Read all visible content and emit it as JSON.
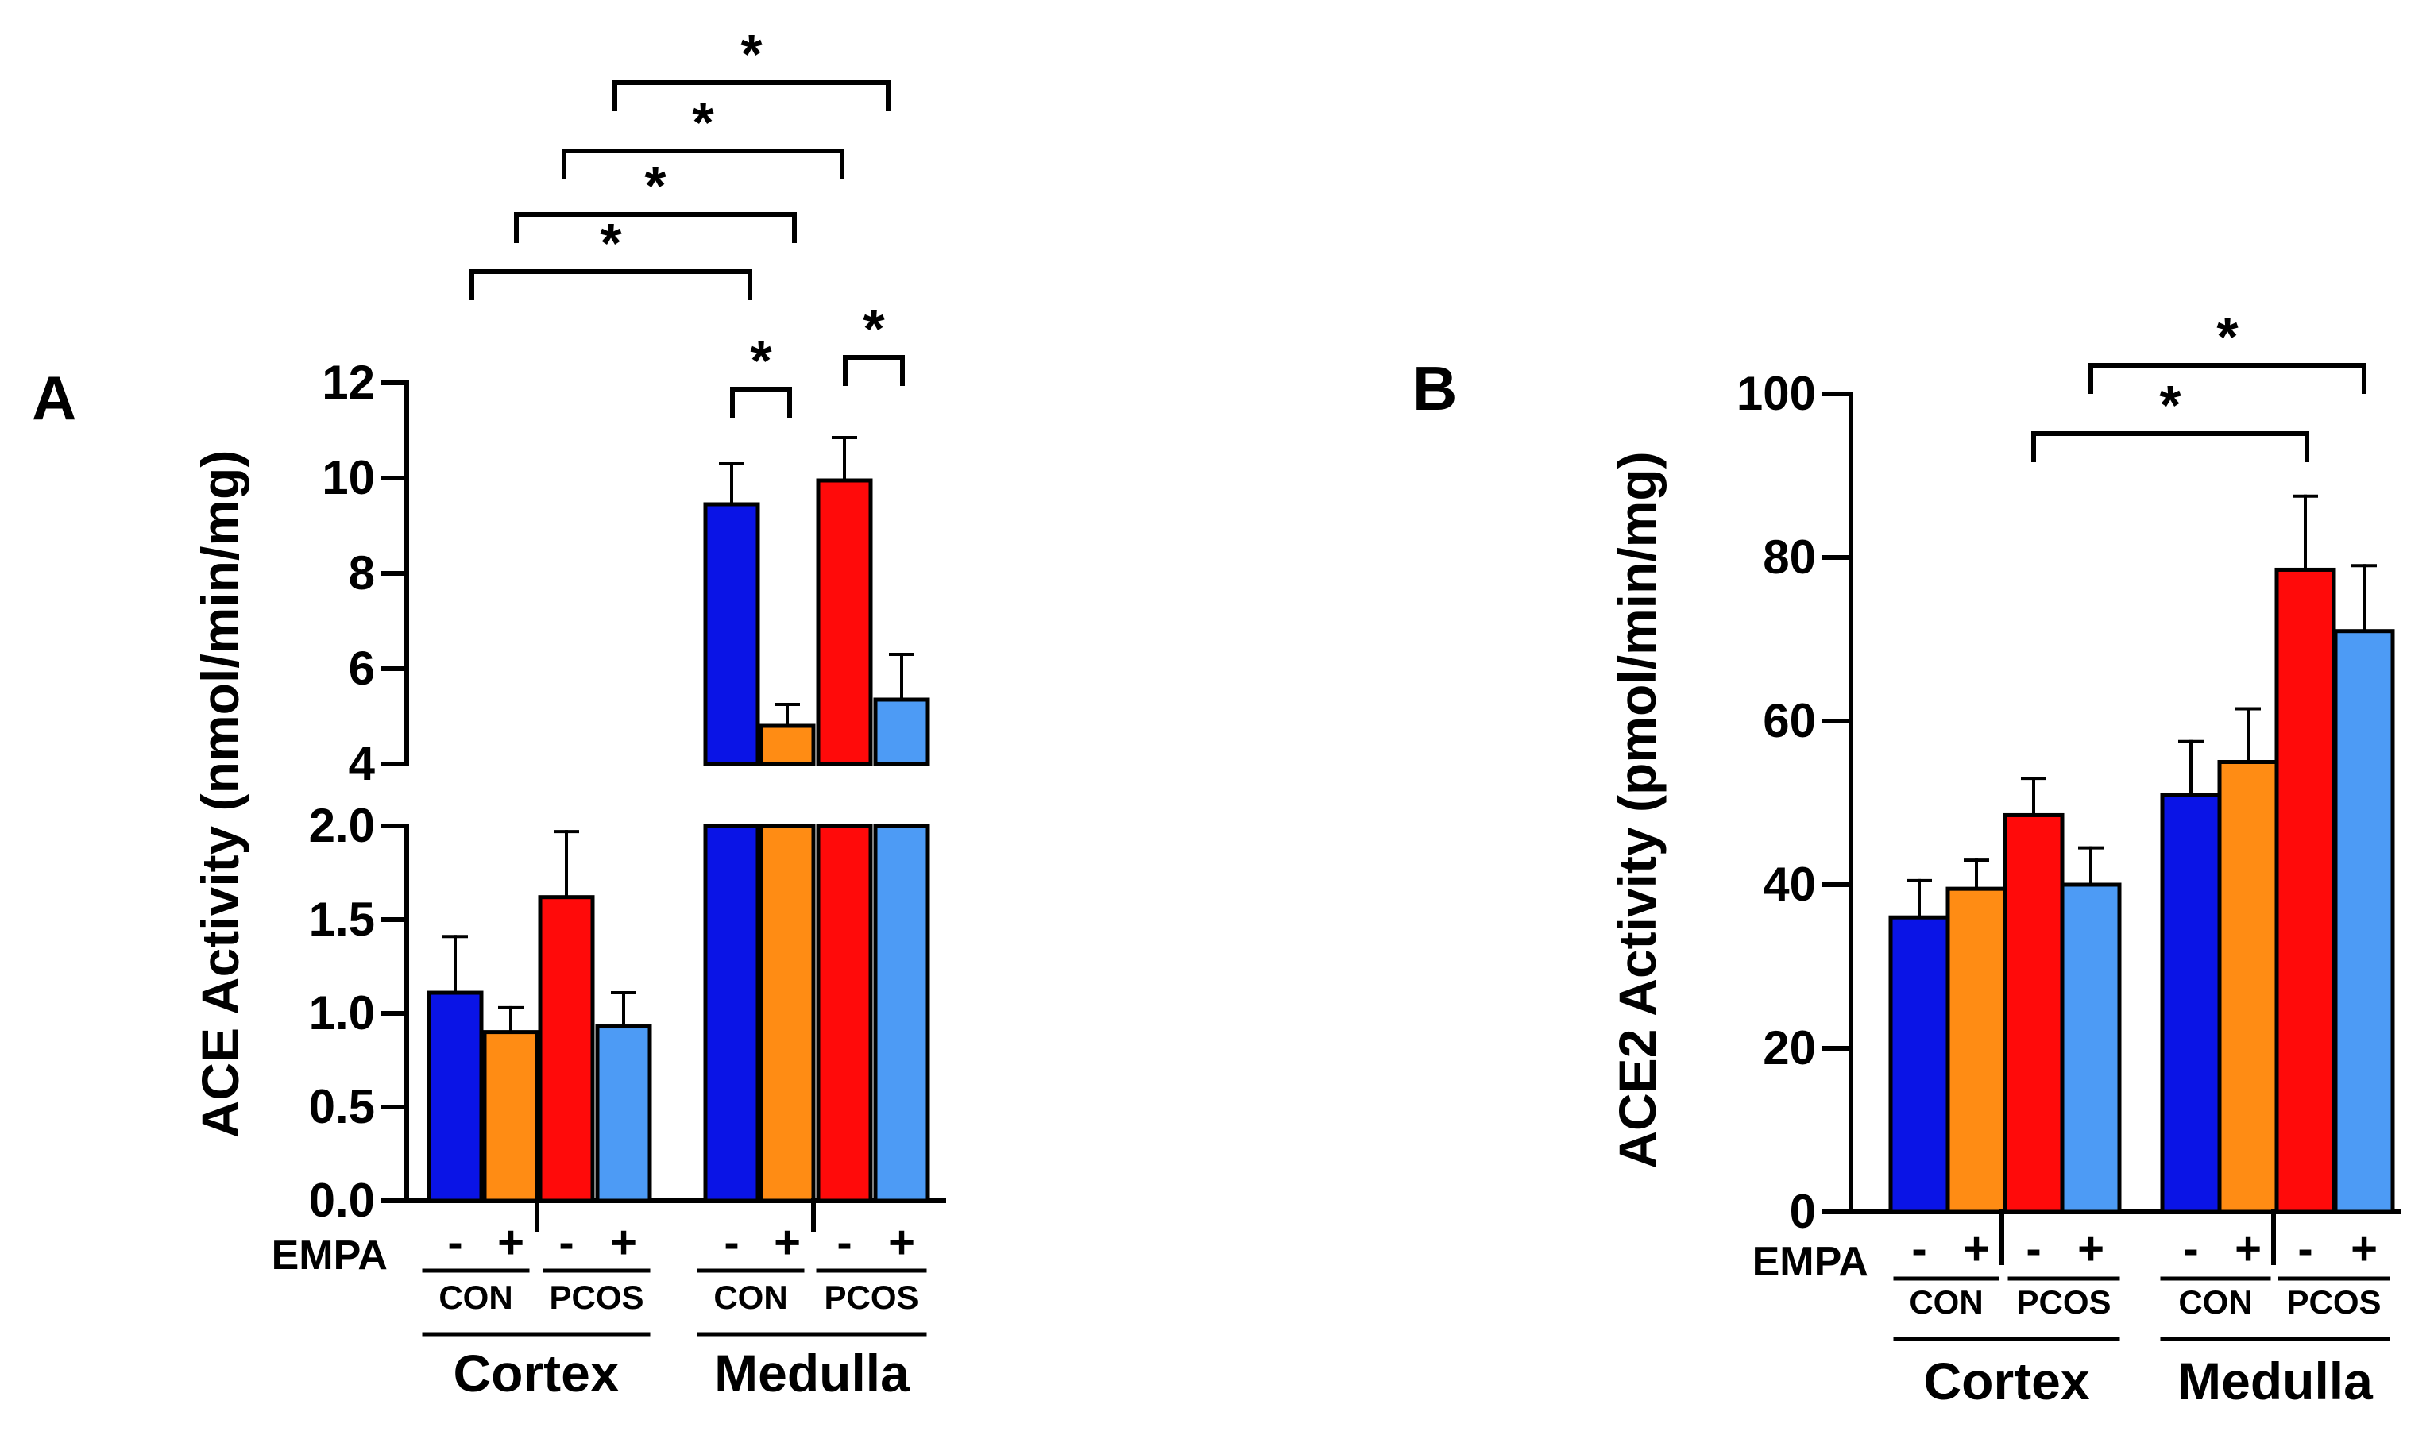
{
  "chart_data": [
    {
      "panel": "A",
      "type": "bar",
      "ylabel": "ACE Activity (nmol/min/mg)",
      "axis_break": true,
      "lower_ylim": [
        0,
        2.0
      ],
      "lower_ticks": [
        "0.0",
        "0.5",
        "1.0",
        "1.5",
        "2.0"
      ],
      "upper_ylim": [
        4,
        12
      ],
      "upper_ticks": [
        "4",
        "6",
        "8",
        "10",
        "12"
      ],
      "empa_label": "EMPA",
      "empa_signs": [
        "-",
        "+"
      ],
      "groups": [
        "CON",
        "PCOS"
      ],
      "regions": [
        "Cortex",
        "Medulla"
      ],
      "series": [
        {
          "name": "CON -",
          "color": "#0a14e6",
          "values": [
            1.11,
            9.45
          ],
          "errors": [
            0.3,
            0.85
          ]
        },
        {
          "name": "CON +",
          "color": "#ff8c14",
          "values": [
            0.9,
            4.8
          ],
          "errors": [
            0.13,
            0.45
          ]
        },
        {
          "name": "PCOS -",
          "color": "#ff0a0a",
          "values": [
            1.62,
            9.95
          ],
          "errors": [
            0.35,
            0.9
          ]
        },
        {
          "name": "PCOS +",
          "color": "#4d9bf5",
          "values": [
            0.93,
            5.35
          ],
          "errors": [
            0.18,
            0.95
          ]
        }
      ],
      "significance": [
        {
          "from": "Medulla CON -",
          "to": "Medulla CON +",
          "label": "*"
        },
        {
          "from": "Medulla PCOS -",
          "to": "Medulla PCOS +",
          "label": "*"
        },
        {
          "from": "Cortex CON -",
          "to": "Medulla CON -",
          "label": "*"
        },
        {
          "from": "Cortex CON +",
          "to": "Medulla CON +",
          "label": "*"
        },
        {
          "from": "Cortex PCOS -",
          "to": "Medulla PCOS -",
          "label": "*"
        },
        {
          "from": "Cortex PCOS +",
          "to": "Medulla PCOS +",
          "label": "*"
        }
      ]
    },
    {
      "panel": "B",
      "type": "bar",
      "ylabel": "ACE2 Activity (pmol/min/mg)",
      "ylim": [
        0,
        100
      ],
      "ticks": [
        "0",
        "20",
        "40",
        "60",
        "80",
        "100"
      ],
      "empa_label": "EMPA",
      "empa_signs": [
        "-",
        "+"
      ],
      "groups": [
        "CON",
        "PCOS"
      ],
      "regions": [
        "Cortex",
        "Medulla"
      ],
      "series": [
        {
          "name": "CON -",
          "color": "#0a14e6",
          "values": [
            36.0,
            51.0
          ],
          "errors": [
            4.5,
            6.5
          ]
        },
        {
          "name": "CON +",
          "color": "#ff8c14",
          "values": [
            39.5,
            55.0
          ],
          "errors": [
            3.5,
            6.5
          ]
        },
        {
          "name": "PCOS -",
          "color": "#ff0a0a",
          "values": [
            48.5,
            78.5
          ],
          "errors": [
            4.5,
            9.0
          ]
        },
        {
          "name": "PCOS +",
          "color": "#4d9bf5",
          "values": [
            40.0,
            71.0
          ],
          "errors": [
            4.5,
            8.0
          ]
        }
      ],
      "significance": [
        {
          "from": "Cortex PCOS -",
          "to": "Medulla PCOS -",
          "label": "*"
        },
        {
          "from": "Cortex PCOS +",
          "to": "Medulla PCOS +",
          "label": "*"
        }
      ]
    }
  ]
}
